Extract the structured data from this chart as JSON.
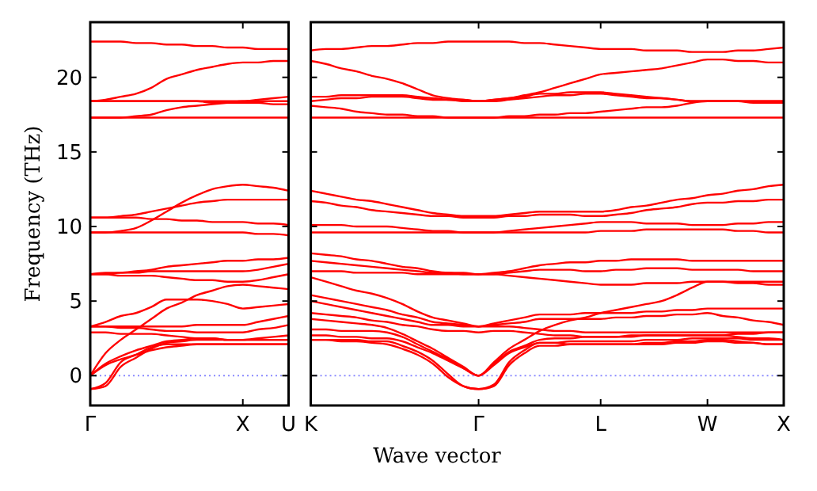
{
  "chart_data": [
    {
      "type": "line",
      "ylabel": "Frequency (THz)",
      "categories": [
        "Γ",
        null,
        null,
        null,
        null,
        null,
        null,
        null,
        null,
        null,
        "X",
        null,
        null,
        "U"
      ],
      "ylim": [
        -2,
        23.7
      ],
      "yticks": [
        0,
        5,
        10,
        15,
        20
      ],
      "ref_lines": [
        {
          "axis": "y",
          "value": 0,
          "color": "#8080ff",
          "line_style": "dotted"
        }
      ],
      "series": [
        {
          "color": "#ff0000",
          "values": [
            22.4,
            22.4,
            22.4,
            22.3,
            22.3,
            22.2,
            22.2,
            22.1,
            22.1,
            22.0,
            22.0,
            21.9,
            21.9,
            21.9
          ]
        },
        {
          "color": "#ff0000",
          "values": [
            18.4,
            18.5,
            18.7,
            18.9,
            19.3,
            19.9,
            20.2,
            20.5,
            20.7,
            20.9,
            21.0,
            21.0,
            21.1,
            21.1
          ]
        },
        {
          "color": "#ff0000",
          "values": [
            18.4,
            18.4,
            18.4,
            18.4,
            18.4,
            18.4,
            18.4,
            18.4,
            18.4,
            18.4,
            18.4,
            18.5,
            18.6,
            18.7
          ]
        },
        {
          "color": "#ff0000",
          "values": [
            18.4,
            18.4,
            18.4,
            18.4,
            18.4,
            18.4,
            18.4,
            18.4,
            18.3,
            18.3,
            18.3,
            18.3,
            18.2,
            18.2
          ]
        },
        {
          "color": "#ff0000",
          "values": [
            17.3,
            17.3,
            17.3,
            17.4,
            17.5,
            17.8,
            18.0,
            18.1,
            18.2,
            18.3,
            18.4,
            18.4,
            18.4,
            18.4
          ]
        },
        {
          "color": "#ff0000",
          "values": [
            17.3,
            17.3,
            17.3,
            17.3,
            17.3,
            17.3,
            17.3,
            17.3,
            17.3,
            17.3,
            17.3,
            17.3,
            17.3,
            17.3
          ]
        },
        {
          "color": "#ff0000",
          "values": [
            9.6,
            9.6,
            9.7,
            9.9,
            10.4,
            11.0,
            11.6,
            12.1,
            12.5,
            12.7,
            12.8,
            12.7,
            12.6,
            12.4
          ]
        },
        {
          "color": "#ff0000",
          "values": [
            10.6,
            10.6,
            10.7,
            10.8,
            11.0,
            11.2,
            11.4,
            11.6,
            11.7,
            11.8,
            11.8,
            11.8,
            11.8,
            11.8
          ]
        },
        {
          "color": "#ff0000",
          "values": [
            10.6,
            10.6,
            10.6,
            10.6,
            10.5,
            10.5,
            10.4,
            10.4,
            10.3,
            10.3,
            10.3,
            10.2,
            10.2,
            10.1
          ]
        },
        {
          "color": "#ff0000",
          "values": [
            9.6,
            9.6,
            9.6,
            9.6,
            9.6,
            9.6,
            9.6,
            9.6,
            9.6,
            9.6,
            9.6,
            9.5,
            9.5,
            9.4
          ]
        },
        {
          "color": "#ff0000",
          "values": [
            6.8,
            6.9,
            6.9,
            7.0,
            7.1,
            7.3,
            7.4,
            7.5,
            7.6,
            7.7,
            7.7,
            7.8,
            7.8,
            7.9
          ]
        },
        {
          "color": "#ff0000",
          "values": [
            6.8,
            6.8,
            6.9,
            6.9,
            7.0,
            7.0,
            7.0,
            7.0,
            7.0,
            7.0,
            7.0,
            7.1,
            7.3,
            7.5
          ]
        },
        {
          "color": "#ff0000",
          "values": [
            6.8,
            6.8,
            6.7,
            6.7,
            6.7,
            6.6,
            6.5,
            6.4,
            6.4,
            6.3,
            6.3,
            6.4,
            6.6,
            6.8
          ]
        },
        {
          "color": "#ff0000",
          "values": [
            3.3,
            3.6,
            4.0,
            4.2,
            4.6,
            5.1,
            5.1,
            5.1,
            5.0,
            4.8,
            4.5,
            4.6,
            4.7,
            4.8
          ]
        },
        {
          "color": "#ff0000",
          "values": [
            3.3,
            3.3,
            3.3,
            3.3,
            3.3,
            3.3,
            3.3,
            3.4,
            3.4,
            3.4,
            3.4,
            3.6,
            3.8,
            4.0
          ]
        },
        {
          "color": "#ff0000",
          "values": [
            3.3,
            3.3,
            3.2,
            3.2,
            3.1,
            3.0,
            3.0,
            2.9,
            2.9,
            2.9,
            2.9,
            3.1,
            3.2,
            3.4
          ]
        },
        {
          "color": "#ff0000",
          "values": [
            2.9,
            2.9,
            2.8,
            2.8,
            2.8,
            2.7,
            2.6,
            2.5,
            2.5,
            2.4,
            2.4,
            2.5,
            2.6,
            2.7
          ]
        },
        {
          "color": "#ff0000",
          "values": [
            0,
            1.5,
            2.4,
            3.1,
            3.8,
            4.5,
            4.9,
            5.4,
            5.7,
            6.0,
            6.1,
            6.0,
            5.9,
            5.8
          ]
        },
        {
          "color": "#ff0000",
          "values": [
            0,
            0.8,
            1.3,
            1.7,
            2.0,
            2.3,
            2.4,
            2.5,
            2.5,
            2.4,
            2.4,
            2.4,
            2.4,
            2.4
          ]
        },
        {
          "color": "#ff0000",
          "values": [
            0,
            0.7,
            1.1,
            1.4,
            1.7,
            1.9,
            2.0,
            2.1,
            2.1,
            2.1,
            2.1,
            2.1,
            2.1,
            2.1
          ]
        },
        {
          "color": "#ff0000",
          "values": [
            -0.9,
            -0.7,
            0.6,
            1.2,
            1.8,
            2.2,
            2.3,
            2.4,
            2.4,
            2.4,
            2.4,
            2.4,
            2.4,
            2.4
          ]
        },
        {
          "color": "#ff0000",
          "values": [
            -0.9,
            -0.5,
            0.9,
            1.4,
            1.9,
            2.1,
            2.1,
            2.1,
            2.1,
            2.1,
            2.1,
            2.1,
            2.1,
            2.1
          ]
        }
      ]
    },
    {
      "type": "line",
      "xlabel": "Wave vector",
      "tick_labels": "x",
      "categories": [
        "K",
        null,
        null,
        null,
        null,
        null,
        null,
        null,
        null,
        null,
        null,
        "Γ",
        null,
        null,
        null,
        null,
        null,
        null,
        null,
        "L",
        null,
        null,
        null,
        null,
        null,
        null,
        "W",
        null,
        null,
        null,
        null,
        "X"
      ],
      "ylim": [
        -2,
        23.7
      ],
      "yticks": [
        0,
        5,
        10,
        15,
        20
      ],
      "ref_lines": [
        {
          "axis": "y",
          "value": 0,
          "color": "#8080ff",
          "line_style": "dotted"
        }
      ],
      "series": [
        {
          "color": "#ff0000",
          "values": [
            21.8,
            21.9,
            21.9,
            22.0,
            22.1,
            22.1,
            22.2,
            22.3,
            22.3,
            22.4,
            22.4,
            22.4,
            22.4,
            22.4,
            22.3,
            22.3,
            22.2,
            22.1,
            22.0,
            21.9,
            21.9,
            21.9,
            21.8,
            21.8,
            21.8,
            21.7,
            21.7,
            21.7,
            21.8,
            21.8,
            21.9,
            22.0
          ]
        },
        {
          "color": "#ff0000",
          "values": [
            21.1,
            20.9,
            20.6,
            20.4,
            20.1,
            19.9,
            19.6,
            19.2,
            18.8,
            18.6,
            18.5,
            18.4,
            18.5,
            18.6,
            18.8,
            19.0,
            19.3,
            19.6,
            19.9,
            20.2,
            20.3,
            20.4,
            20.5,
            20.6,
            20.8,
            21.0,
            21.2,
            21.2,
            21.1,
            21.1,
            21.0,
            21.0
          ]
        },
        {
          "color": "#ff0000",
          "values": [
            18.7,
            18.7,
            18.8,
            18.8,
            18.8,
            18.8,
            18.8,
            18.7,
            18.6,
            18.5,
            18.5,
            18.4,
            18.5,
            18.6,
            18.7,
            18.9,
            18.9,
            19.0,
            19.0,
            19.0,
            18.9,
            18.8,
            18.7,
            18.6,
            18.5,
            18.4,
            18.4,
            18.4,
            18.4,
            18.4,
            18.4,
            18.4
          ]
        },
        {
          "color": "#ff0000",
          "values": [
            18.4,
            18.5,
            18.6,
            18.6,
            18.7,
            18.7,
            18.7,
            18.6,
            18.5,
            18.5,
            18.4,
            18.4,
            18.4,
            18.5,
            18.6,
            18.7,
            18.8,
            18.8,
            18.9,
            18.9,
            18.8,
            18.7,
            18.6,
            18.6,
            18.5,
            18.4,
            18.4,
            18.4,
            18.4,
            18.3,
            18.3,
            18.3
          ]
        },
        {
          "color": "#ff0000",
          "values": [
            18.1,
            18.0,
            17.9,
            17.7,
            17.6,
            17.5,
            17.5,
            17.4,
            17.4,
            17.3,
            17.3,
            17.3,
            17.3,
            17.4,
            17.4,
            17.5,
            17.5,
            17.6,
            17.6,
            17.7,
            17.8,
            17.9,
            18.0,
            18.0,
            18.1,
            18.3,
            18.4,
            18.4,
            18.4,
            18.4,
            18.4,
            18.4
          ]
        },
        {
          "color": "#ff0000",
          "values": [
            17.3,
            17.3,
            17.3,
            17.3,
            17.3,
            17.3,
            17.3,
            17.3,
            17.3,
            17.3,
            17.3,
            17.3,
            17.3,
            17.3,
            17.3,
            17.3,
            17.3,
            17.3,
            17.3,
            17.3,
            17.3,
            17.3,
            17.3,
            17.3,
            17.3,
            17.3,
            17.3,
            17.3,
            17.3,
            17.3,
            17.3,
            17.3
          ]
        },
        {
          "color": "#ff0000",
          "values": [
            12.4,
            12.2,
            12.0,
            11.8,
            11.7,
            11.5,
            11.3,
            11.1,
            10.9,
            10.8,
            10.7,
            10.7,
            10.7,
            10.8,
            10.9,
            11.0,
            11.0,
            11.0,
            11.0,
            11.0,
            11.1,
            11.3,
            11.4,
            11.6,
            11.8,
            11.9,
            12.1,
            12.2,
            12.4,
            12.5,
            12.7,
            12.8
          ]
        },
        {
          "color": "#ff0000",
          "values": [
            11.7,
            11.6,
            11.4,
            11.3,
            11.1,
            11.0,
            10.9,
            10.8,
            10.7,
            10.7,
            10.6,
            10.6,
            10.6,
            10.7,
            10.7,
            10.8,
            10.8,
            10.8,
            10.7,
            10.7,
            10.8,
            10.9,
            11.1,
            11.2,
            11.3,
            11.5,
            11.6,
            11.6,
            11.7,
            11.7,
            11.8,
            11.8
          ]
        },
        {
          "color": "#ff0000",
          "values": [
            10.1,
            10.1,
            10.1,
            10.0,
            10.0,
            10.0,
            9.9,
            9.8,
            9.7,
            9.7,
            9.6,
            9.6,
            9.6,
            9.7,
            9.8,
            9.9,
            10.0,
            10.1,
            10.2,
            10.3,
            10.3,
            10.3,
            10.2,
            10.2,
            10.2,
            10.1,
            10.1,
            10.1,
            10.2,
            10.2,
            10.3,
            10.3
          ]
        },
        {
          "color": "#ff0000",
          "values": [
            9.6,
            9.6,
            9.6,
            9.6,
            9.6,
            9.6,
            9.6,
            9.6,
            9.6,
            9.6,
            9.6,
            9.6,
            9.6,
            9.6,
            9.6,
            9.6,
            9.6,
            9.6,
            9.6,
            9.7,
            9.7,
            9.7,
            9.8,
            9.8,
            9.8,
            9.8,
            9.8,
            9.8,
            9.7,
            9.7,
            9.6,
            9.6
          ]
        },
        {
          "color": "#ff0000",
          "values": [
            8.2,
            8.1,
            8.0,
            7.8,
            7.7,
            7.5,
            7.3,
            7.2,
            7.0,
            6.9,
            6.9,
            6.8,
            6.9,
            7.0,
            7.2,
            7.4,
            7.5,
            7.6,
            7.6,
            7.7,
            7.7,
            7.8,
            7.8,
            7.8,
            7.8,
            7.7,
            7.7,
            7.7,
            7.7,
            7.7,
            7.7,
            7.7
          ]
        },
        {
          "color": "#ff0000",
          "values": [
            7.7,
            7.6,
            7.5,
            7.4,
            7.3,
            7.2,
            7.1,
            7.0,
            6.9,
            6.9,
            6.8,
            6.8,
            6.8,
            6.9,
            7.0,
            7.1,
            7.1,
            7.1,
            7.0,
            7.0,
            7.1,
            7.1,
            7.2,
            7.2,
            7.2,
            7.1,
            7.1,
            7.1,
            7.1,
            7.0,
            7.0,
            7.0
          ]
        },
        {
          "color": "#ff0000",
          "values": [
            7.0,
            7.0,
            7.0,
            6.9,
            6.9,
            6.9,
            6.9,
            6.8,
            6.8,
            6.8,
            6.8,
            6.8,
            6.8,
            6.7,
            6.6,
            6.5,
            6.4,
            6.3,
            6.2,
            6.1,
            6.1,
            6.1,
            6.2,
            6.2,
            6.2,
            6.3,
            6.3,
            6.3,
            6.3,
            6.3,
            6.3,
            6.3
          ]
        },
        {
          "color": "#ff0000",
          "values": [
            6.6,
            6.3,
            6.0,
            5.7,
            5.5,
            5.2,
            4.8,
            4.3,
            3.9,
            3.7,
            3.5,
            3.3,
            3.5,
            3.7,
            3.9,
            4.1,
            4.1,
            4.1,
            4.2,
            4.2,
            4.2,
            4.2,
            4.3,
            4.3,
            4.4,
            4.4,
            4.5,
            4.5,
            4.5,
            4.5,
            4.5,
            4.5
          ]
        },
        {
          "color": "#ff0000",
          "values": [
            5.4,
            5.2,
            5.0,
            4.8,
            4.6,
            4.4,
            4.1,
            3.9,
            3.6,
            3.5,
            3.4,
            3.3,
            3.4,
            3.5,
            3.6,
            3.8,
            3.8,
            3.8,
            3.8,
            3.8,
            3.9,
            3.9,
            4.0,
            4.0,
            4.1,
            4.1,
            4.2,
            4.0,
            3.9,
            3.7,
            3.6,
            3.4
          ]
        },
        {
          "color": "#ff0000",
          "values": [
            5.0,
            4.8,
            4.6,
            4.4,
            4.2,
            4.0,
            3.8,
            3.6,
            3.4,
            3.4,
            3.3,
            3.3,
            3.3,
            3.3,
            3.2,
            3.1,
            3.0,
            3.0,
            2.9,
            2.9,
            2.9,
            2.9,
            2.9,
            2.9,
            2.9,
            2.9,
            2.9,
            2.9,
            2.9,
            2.9,
            2.9,
            2.9
          ]
        },
        {
          "color": "#ff0000",
          "values": [
            4.2,
            4.1,
            4.0,
            3.9,
            3.7,
            3.6,
            3.4,
            3.3,
            3.1,
            3.0,
            3.0,
            2.9,
            3.0,
            3.0,
            2.9,
            2.8,
            2.7,
            2.7,
            2.6,
            2.6,
            2.6,
            2.6,
            2.7,
            2.7,
            2.7,
            2.7,
            2.7,
            2.7,
            2.8,
            2.8,
            2.9,
            2.9
          ]
        },
        {
          "color": "#ff0000",
          "values": [
            3.8,
            3.7,
            3.6,
            3.5,
            3.4,
            3.2,
            2.8,
            2.3,
            1.8,
            1.2,
            0.6,
            0,
            0.9,
            1.8,
            2.4,
            3.0,
            3.4,
            3.7,
            3.9,
            4.2,
            4.4,
            4.6,
            4.8,
            5.0,
            5.4,
            5.9,
            6.3,
            6.3,
            6.2,
            6.2,
            6.1,
            6.1
          ]
        },
        {
          "color": "#ff0000",
          "values": [
            3.1,
            3.1,
            3.0,
            3.0,
            3.0,
            2.9,
            2.6,
            2.1,
            1.6,
            1.1,
            0.5,
            0,
            0.8,
            1.6,
            2.0,
            2.4,
            2.5,
            2.5,
            2.6,
            2.6,
            2.6,
            2.7,
            2.7,
            2.7,
            2.7,
            2.7,
            2.7,
            2.7,
            2.6,
            2.5,
            2.5,
            2.4
          ]
        },
        {
          "color": "#ff0000",
          "values": [
            2.7,
            2.7,
            2.6,
            2.6,
            2.5,
            2.5,
            2.3,
            1.9,
            1.5,
            1.0,
            0.5,
            0,
            0.7,
            1.5,
            1.9,
            2.2,
            2.2,
            2.1,
            2.1,
            2.1,
            2.1,
            2.1,
            2.1,
            2.1,
            2.2,
            2.2,
            2.3,
            2.3,
            2.2,
            2.2,
            2.1,
            2.1
          ]
        },
        {
          "color": "#ff0000",
          "values": [
            2.4,
            2.4,
            2.4,
            2.4,
            2.3,
            2.3,
            2.0,
            1.6,
            1.0,
            0.1,
            -0.7,
            -0.9,
            -0.6,
            0.9,
            1.7,
            2.2,
            2.2,
            2.3,
            2.3,
            2.3,
            2.3,
            2.3,
            2.4,
            2.4,
            2.4,
            2.5,
            2.5,
            2.5,
            2.5,
            2.4,
            2.4,
            2.4
          ]
        },
        {
          "color": "#ff0000",
          "values": [
            2.4,
            2.4,
            2.3,
            2.3,
            2.2,
            2.1,
            1.8,
            1.4,
            0.8,
            -0.1,
            -0.7,
            -0.9,
            -0.7,
            0.7,
            1.5,
            2.0,
            2.0,
            2.1,
            2.1,
            2.1,
            2.1,
            2.1,
            2.2,
            2.2,
            2.3,
            2.3,
            2.4,
            2.4,
            2.3,
            2.2,
            2.1,
            2.1
          ]
        }
      ]
    }
  ]
}
